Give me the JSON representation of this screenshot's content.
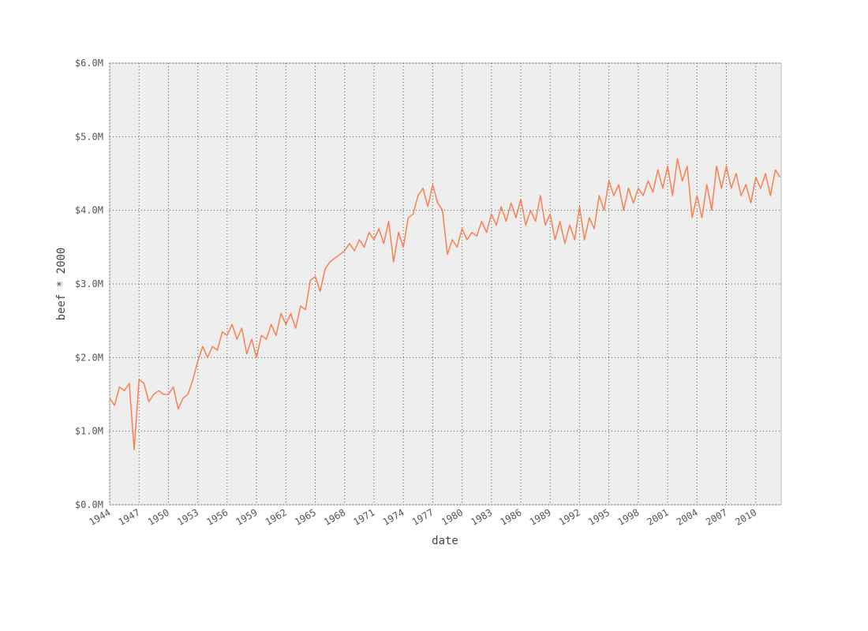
{
  "chart_data": {
    "type": "line",
    "x_label": "date",
    "y_label": "beef * 2000",
    "x": [
      1944,
      1944.5,
      1945,
      1945.5,
      1946,
      1946.5,
      1947,
      1947.5,
      1948,
      1948.5,
      1949,
      1949.5,
      1950,
      1950.5,
      1951,
      1951.5,
      1952,
      1952.5,
      1953,
      1953.5,
      1954,
      1954.5,
      1955,
      1955.5,
      1956,
      1956.5,
      1957,
      1957.5,
      1958,
      1958.5,
      1959,
      1959.5,
      1960,
      1960.5,
      1961,
      1961.5,
      1962,
      1962.5,
      1963,
      1963.5,
      1964,
      1964.5,
      1965,
      1965.5,
      1966,
      1966.5,
      1967,
      1967.5,
      1968,
      1968.5,
      1969,
      1969.5,
      1970,
      1970.5,
      1971,
      1971.5,
      1972,
      1972.5,
      1973,
      1973.5,
      1974,
      1974.5,
      1975,
      1975.5,
      1976,
      1976.5,
      1977,
      1977.5,
      1978,
      1978.5,
      1979,
      1979.5,
      1980,
      1980.5,
      1981,
      1981.5,
      1982,
      1982.5,
      1983,
      1983.5,
      1984,
      1984.5,
      1985,
      1985.5,
      1986,
      1986.5,
      1987,
      1987.5,
      1988,
      1988.5,
      1989,
      1989.5,
      1990,
      1990.5,
      1991,
      1991.5,
      1992,
      1992.5,
      1993,
      1993.5,
      1994,
      1994.5,
      1995,
      1995.5,
      1996,
      1996.5,
      1997,
      1997.5,
      1998,
      1998.5,
      1999,
      1999.5,
      2000,
      2000.5,
      2001,
      2001.5,
      2002,
      2002.5,
      2003,
      2003.5,
      2004,
      2004.5,
      2005,
      2005.5,
      2006,
      2006.5,
      2007,
      2007.5,
      2008,
      2008.5,
      2009,
      2009.5,
      2010,
      2010.5,
      2011,
      2011.5,
      2012,
      2012.5
    ],
    "series": [
      {
        "name": "beef * 2000",
        "color": "#f8814f",
        "values": [
          1.45,
          1.35,
          1.6,
          1.55,
          1.65,
          0.75,
          1.7,
          1.65,
          1.4,
          1.5,
          1.55,
          1.5,
          1.5,
          1.6,
          1.3,
          1.45,
          1.5,
          1.7,
          1.95,
          2.15,
          2.0,
          2.15,
          2.1,
          2.35,
          2.3,
          2.45,
          2.25,
          2.4,
          2.05,
          2.25,
          2.0,
          2.3,
          2.25,
          2.45,
          2.3,
          2.6,
          2.45,
          2.6,
          2.4,
          2.7,
          2.65,
          3.05,
          3.1,
          2.9,
          3.2,
          3.3,
          3.35,
          3.4,
          3.45,
          3.55,
          3.45,
          3.6,
          3.5,
          3.7,
          3.6,
          3.75,
          3.55,
          3.85,
          3.3,
          3.7,
          3.5,
          3.9,
          3.95,
          4.2,
          4.3,
          4.05,
          4.35,
          4.1,
          4.0,
          3.4,
          3.6,
          3.5,
          3.75,
          3.6,
          3.7,
          3.65,
          3.85,
          3.7,
          3.95,
          3.8,
          4.05,
          3.85,
          4.1,
          3.9,
          4.15,
          3.8,
          4.0,
          3.85,
          4.2,
          3.8,
          3.95,
          3.6,
          3.85,
          3.55,
          3.8,
          3.6,
          4.05,
          3.6,
          3.9,
          3.75,
          4.2,
          4.0,
          4.4,
          4.2,
          4.35,
          4.0,
          4.3,
          4.1,
          4.3,
          4.2,
          4.4,
          4.25,
          4.55,
          4.3,
          4.6,
          4.2,
          4.7,
          4.4,
          4.6,
          3.9,
          4.2,
          3.9,
          4.35,
          4.0,
          4.6,
          4.3,
          4.6,
          4.3,
          4.5,
          4.2,
          4.35,
          4.1,
          4.45,
          4.3,
          4.5,
          4.2,
          4.55,
          4.45
        ]
      }
    ],
    "xlim": [
      1944,
      2012.6
    ],
    "xticks": [
      1944,
      1947,
      1950,
      1953,
      1956,
      1959,
      1962,
      1965,
      1968,
      1971,
      1974,
      1977,
      1980,
      1983,
      1986,
      1989,
      1992,
      1995,
      1998,
      2001,
      2004,
      2007,
      2010
    ],
    "ylim": [
      0,
      6
    ],
    "yticks": [
      {
        "value": 0,
        "label": "$0.0M"
      },
      {
        "value": 1,
        "label": "$1.0M"
      },
      {
        "value": 2,
        "label": "$2.0M"
      },
      {
        "value": 3,
        "label": "$3.0M"
      },
      {
        "value": 4,
        "label": "$4.0M"
      },
      {
        "value": 5,
        "label": "$5.0M"
      },
      {
        "value": 6,
        "label": "$6.0M"
      }
    ],
    "grid": true
  }
}
